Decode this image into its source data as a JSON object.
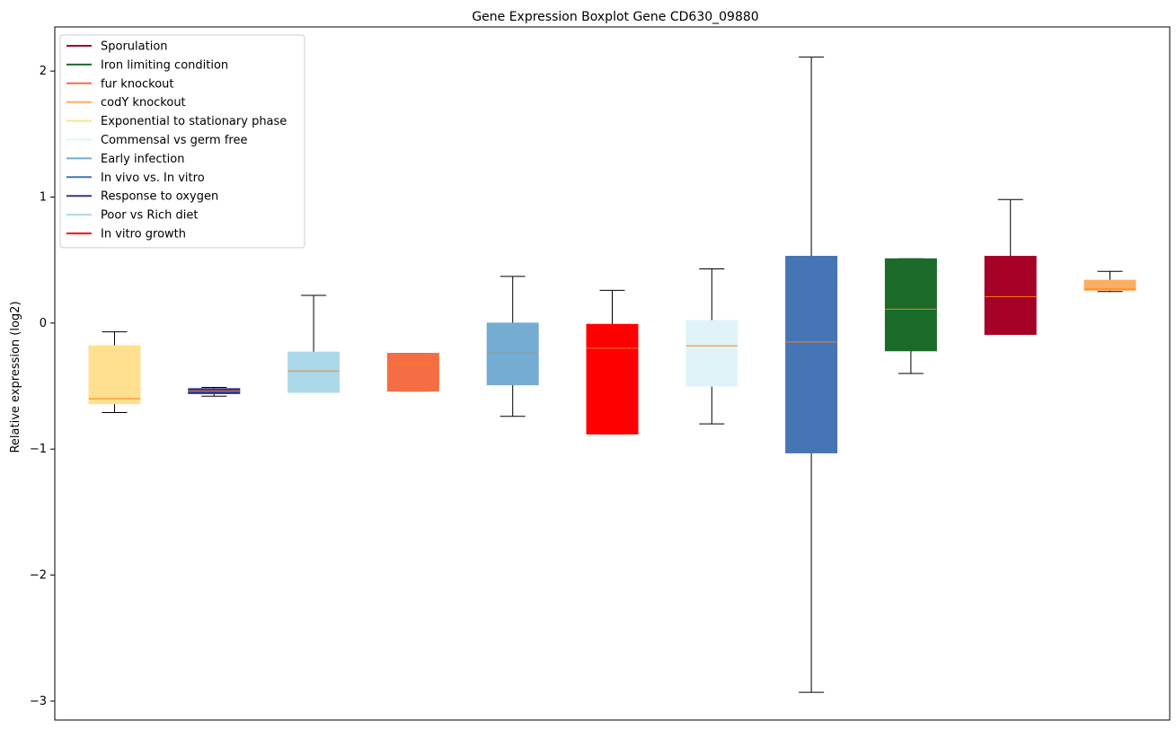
{
  "chart_data": {
    "type": "boxplot",
    "title": "Gene Expression Boxplot Gene CD630_09880",
    "xlabel": "",
    "ylabel": "Relative expression (log2)",
    "ylim": [
      -3.15,
      2.35
    ],
    "yticks": [
      -3,
      -2,
      -1,
      0,
      1,
      2
    ],
    "ytick_labels": [
      "−3",
      "−2",
      "−1",
      "0",
      "1",
      "2"
    ],
    "legend_position": "upper-left",
    "legend": [
      {
        "label": "Sporulation",
        "color": "#a50026"
      },
      {
        "label": "Iron limiting condition",
        "color": "#1a6b2a"
      },
      {
        "label": "fur knockout",
        "color": "#f46d43"
      },
      {
        "label": "codY knockout",
        "color": "#fdae61"
      },
      {
        "label": "Exponential to stationary phase",
        "color": "#fee090"
      },
      {
        "label": "Commensal vs germ free",
        "color": "#e0f3f8"
      },
      {
        "label": "Early infection",
        "color": "#74add1"
      },
      {
        "label": "In vivo vs. In vitro",
        "color": "#4575b4"
      },
      {
        "label": "Response to oxygen",
        "color": "#313695"
      },
      {
        "label": "Poor vs Rich diet",
        "color": "#abd9e9"
      },
      {
        "label": "In vitro growth",
        "color": "#ff0000"
      }
    ],
    "boxes": [
      {
        "group": "Exponential to stationary phase",
        "color": "#fee090",
        "whisker_low": -0.71,
        "q1": -0.64,
        "median": -0.6,
        "q3": -0.18,
        "whisker_high": -0.07
      },
      {
        "group": "Response to oxygen",
        "color": "#313695",
        "whisker_low": -0.58,
        "q1": -0.56,
        "median": -0.54,
        "q3": -0.52,
        "whisker_high": -0.51
      },
      {
        "group": "Poor vs Rich diet",
        "color": "#abd9e9",
        "whisker_low": -0.55,
        "q1": -0.55,
        "median": -0.38,
        "q3": -0.23,
        "whisker_high": 0.22
      },
      {
        "group": "fur knockout",
        "color": "#f46d43",
        "whisker_low": -0.54,
        "q1": -0.54,
        "median": -0.32,
        "q3": -0.24,
        "whisker_high": -0.24
      },
      {
        "group": "Early infection",
        "color": "#74add1",
        "whisker_low": -0.74,
        "q1": -0.49,
        "median": -0.24,
        "q3": 0.0,
        "whisker_high": 0.37
      },
      {
        "group": "In vitro growth",
        "color": "#ff0000",
        "whisker_low": -0.88,
        "q1": -0.88,
        "median": -0.2,
        "q3": -0.01,
        "whisker_high": 0.26
      },
      {
        "group": "Commensal vs germ free",
        "color": "#e0f3f8",
        "whisker_low": -0.8,
        "q1": -0.5,
        "median": -0.18,
        "q3": 0.02,
        "whisker_high": 0.43
      },
      {
        "group": "In vivo vs. In vitro",
        "color": "#4575b4",
        "whisker_low": -2.93,
        "q1": -1.03,
        "median": -0.15,
        "q3": 0.53,
        "whisker_high": 2.11
      },
      {
        "group": "Iron limiting condition",
        "color": "#1a6b2a",
        "whisker_low": -0.4,
        "q1": -0.22,
        "median": 0.11,
        "q3": 0.51,
        "whisker_high": 0.51
      },
      {
        "group": "Sporulation",
        "color": "#a50026",
        "whisker_low": -0.09,
        "q1": -0.09,
        "median": 0.21,
        "q3": 0.53,
        "whisker_high": 0.98
      },
      {
        "group": "codY knockout",
        "color": "#fdae61",
        "whisker_low": 0.25,
        "q1": 0.26,
        "median": 0.27,
        "q3": 0.34,
        "whisker_high": 0.41
      }
    ],
    "median_color": "#ff7f0e",
    "whisker_color": "#000000"
  }
}
